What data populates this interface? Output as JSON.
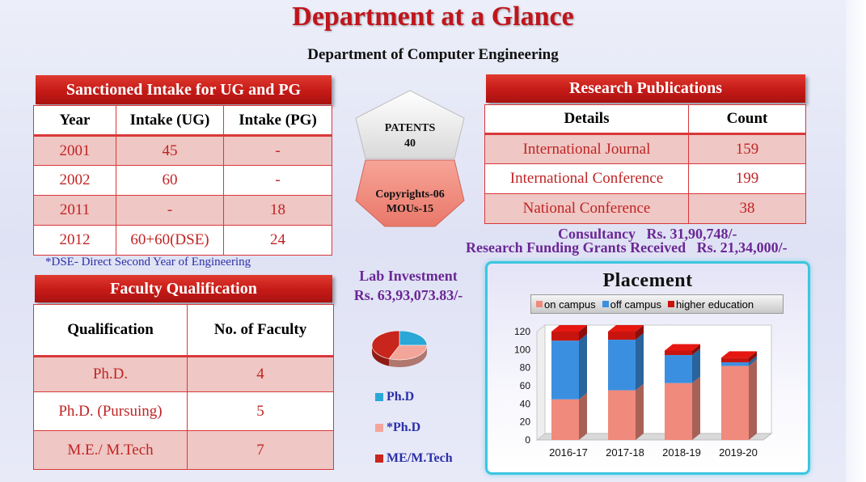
{
  "title": "Department at a Glance",
  "subtitle": "Department of Computer Engineering",
  "intake": {
    "banner": "Sanctioned Intake for UG and PG",
    "headers": [
      "Year",
      "Intake (UG)",
      "Intake (PG)"
    ],
    "rows": [
      [
        "2001",
        "45",
        "-"
      ],
      [
        "2002",
        "60",
        "-"
      ],
      [
        "2011",
        "-",
        "18"
      ],
      [
        "2012",
        "60+60(DSE)",
        "24"
      ]
    ],
    "note": "*DSE- Direct Second Year of Engineering"
  },
  "highlights": {
    "patents_label": "PATENTS",
    "patents_value": "40",
    "copyrights": "Copyrights-06",
    "mous": "MOUs-15"
  },
  "research": {
    "banner": "Research Publications",
    "headers": [
      "Details",
      "Count"
    ],
    "rows": [
      [
        "International Journal",
        "159"
      ],
      [
        "International Conference",
        "199"
      ],
      [
        "National Conference",
        "38"
      ]
    ]
  },
  "consultancy": "Consultancy   Rs. 31,90,748/-",
  "funding": "Research Funding Grants Received   Rs. 21,34,000/-",
  "lab": {
    "label": "Lab Investment",
    "value": "Rs. 63,93,073.83/-"
  },
  "faculty": {
    "banner": "Faculty Qualification",
    "headers": [
      "Qualification",
      "No. of Faculty"
    ],
    "rows": [
      [
        "Ph.D.",
        "4"
      ],
      [
        "Ph.D. (Pursuing)",
        "5"
      ],
      [
        "M.E./ M.Tech",
        "7"
      ]
    ]
  },
  "pie_legend": [
    {
      "label": "Ph.D",
      "color": "#2aa7d6"
    },
    {
      "label": "*Ph.D",
      "color": "#f4a59a"
    },
    {
      "label": "ME/M.Tech",
      "color": "#c8251c"
    }
  ],
  "chart_data": [
    {
      "type": "pie",
      "labels": [
        "Ph.D",
        "*Ph.D",
        "ME/M.Tech"
      ],
      "values": [
        4,
        5,
        7
      ],
      "colors": [
        "#2aa7d6",
        "#f4a59a",
        "#c8251c"
      ]
    },
    {
      "type": "bar",
      "stacked": true,
      "title": "Placement",
      "categories": [
        "2016-17",
        "2017-18",
        "2018-19",
        "2019-20"
      ],
      "series": [
        {
          "name": "on campus",
          "values": [
            45,
            55,
            63,
            82
          ],
          "color": "#f08a7c"
        },
        {
          "name": "off campus",
          "values": [
            65,
            56,
            31,
            4
          ],
          "color": "#3b8fe0"
        },
        {
          "name": "higher education",
          "values": [
            10,
            9,
            5,
            5
          ],
          "color": "#c8140e"
        }
      ],
      "ylim": [
        0,
        120
      ],
      "yticks": [
        "0",
        "20",
        "40",
        "60",
        "80",
        "100",
        "120"
      ],
      "legend": "top",
      "grid": false
    }
  ]
}
